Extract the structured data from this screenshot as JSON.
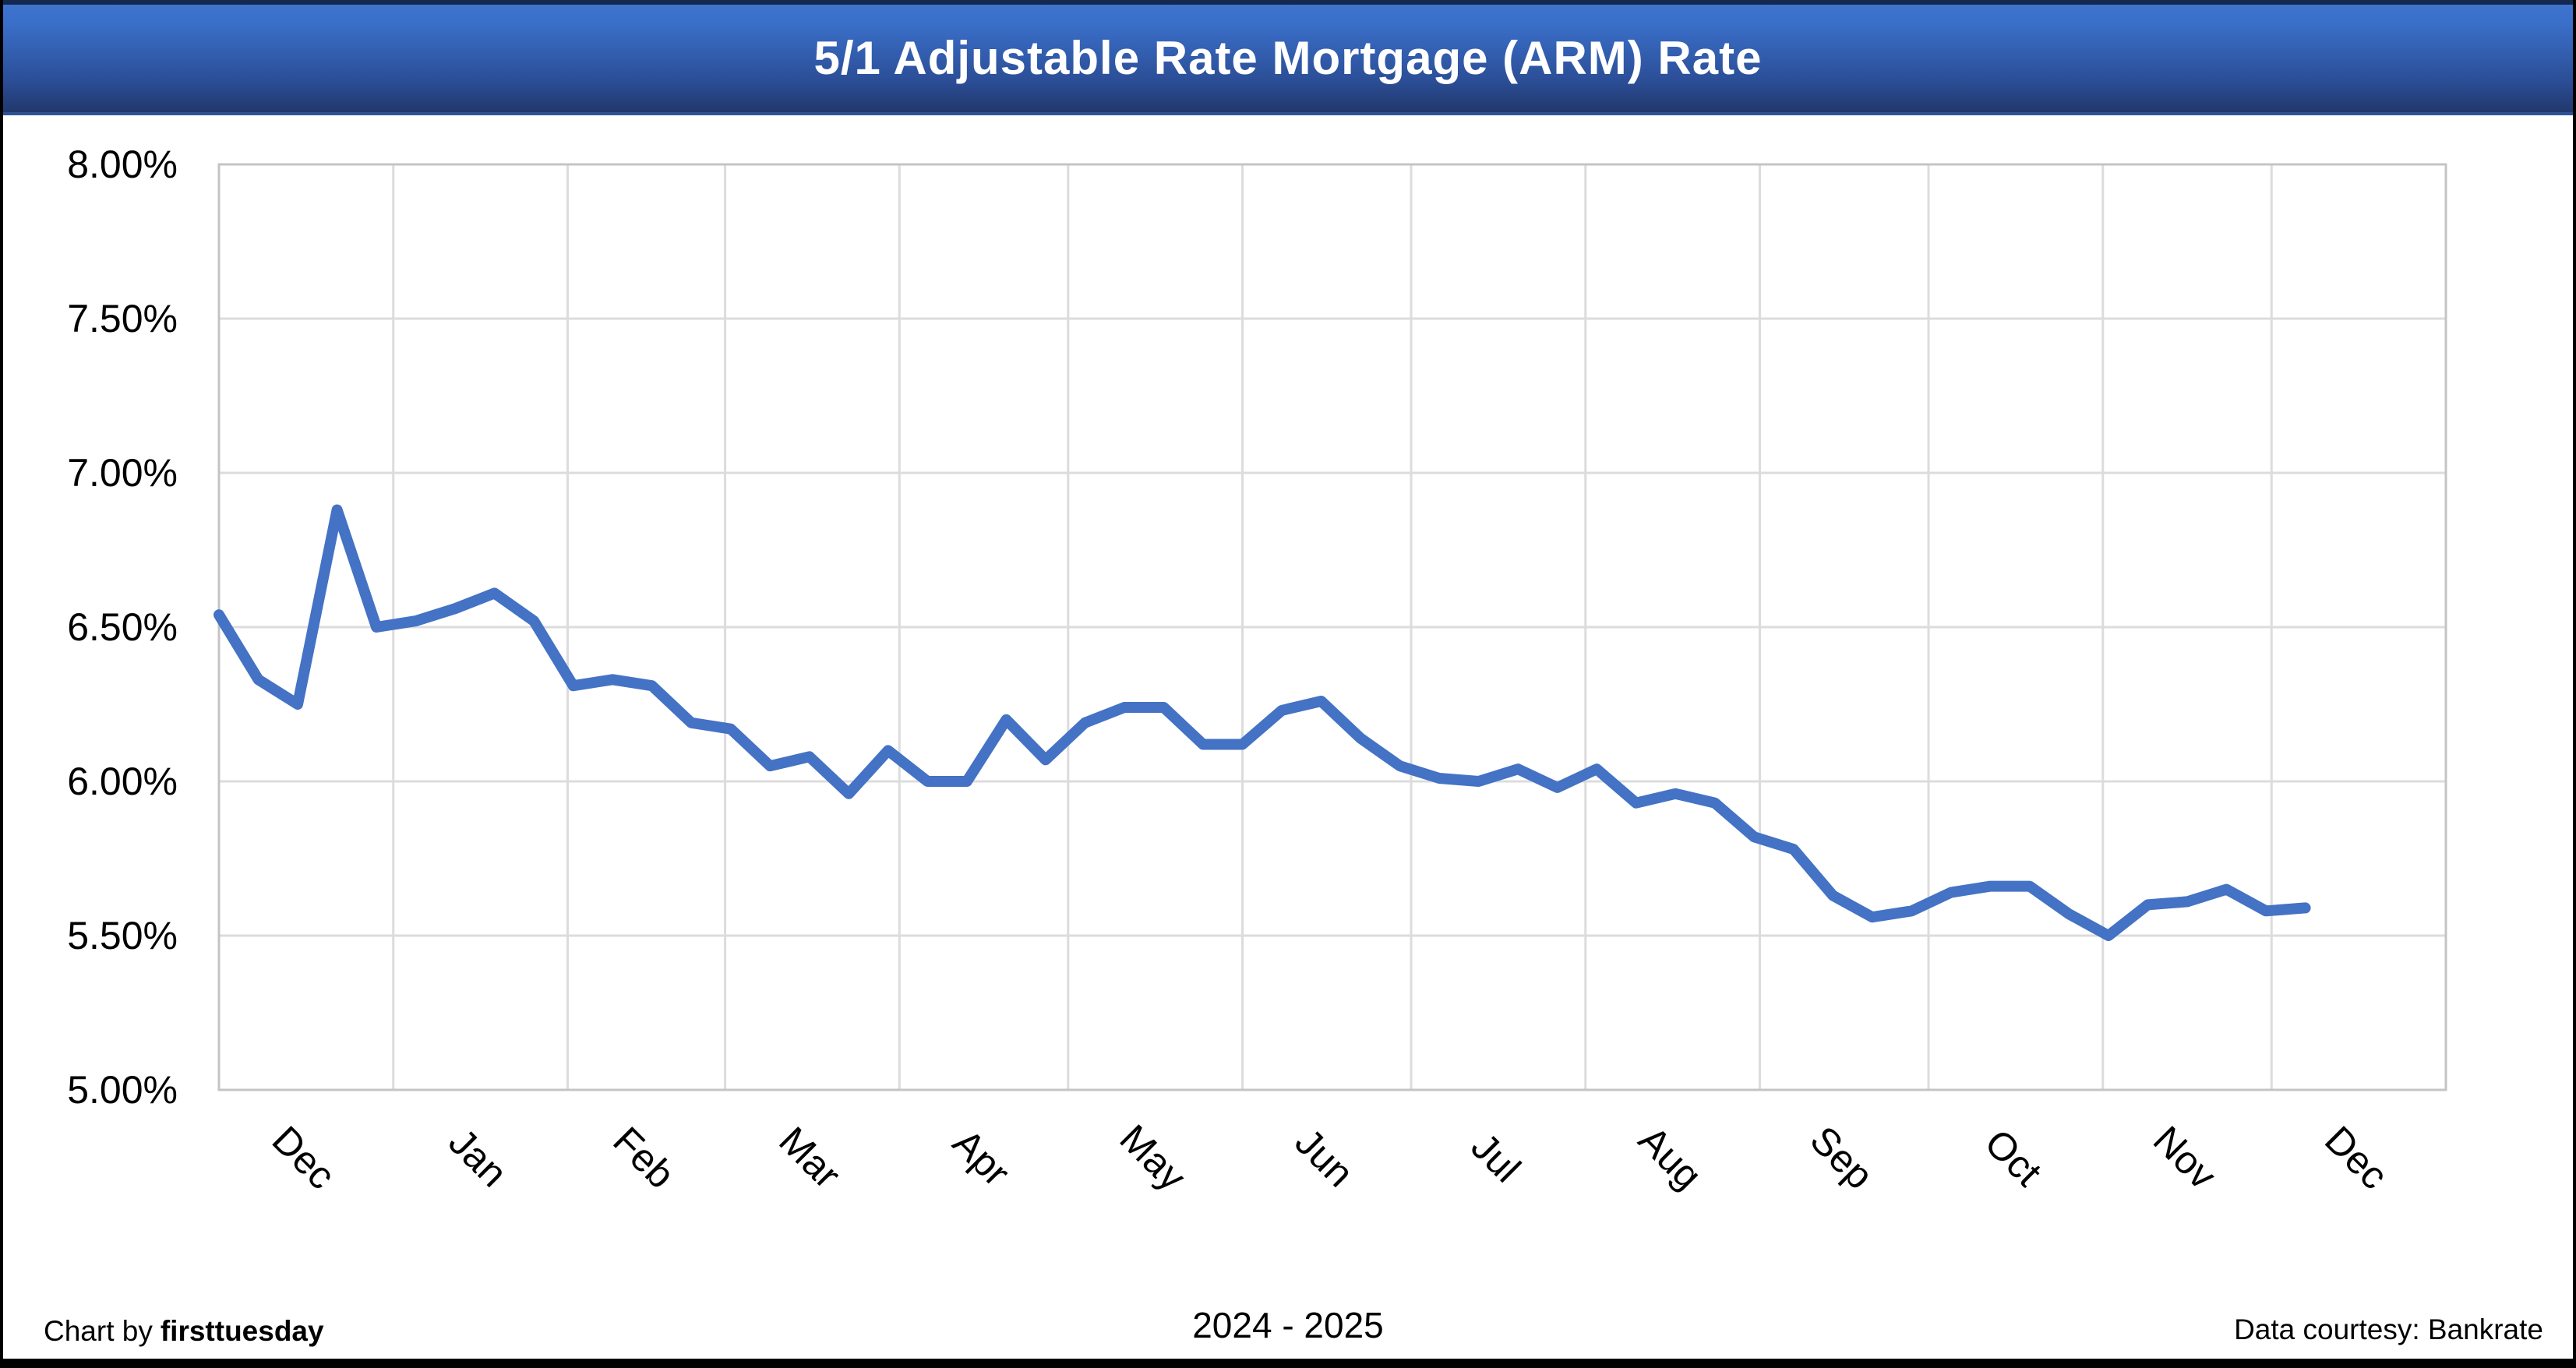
{
  "banner": {
    "title": "5/1 Adjustable Rate Mortgage (ARM) Rate"
  },
  "footer": {
    "credit_prefix": "Chart by",
    "credit_name": "firsttuesday",
    "period": "2024 - 2025",
    "source": "Data courtesy: Bankrate"
  },
  "chart_data": {
    "type": "line",
    "title": "5/1 Adjustable Rate Mortgage (ARM) Rate",
    "x_axis": {
      "months": [
        "Dec",
        "Jan",
        "Feb",
        "Mar",
        "Apr",
        "May",
        "Jun",
        "Jul",
        "Aug",
        "Sep",
        "Oct",
        "Nov",
        "Dec"
      ],
      "period_label": "2024 - 2025",
      "month_boundary_days": [
        0,
        31,
        62,
        90,
        121,
        151,
        182,
        212,
        243,
        274,
        304,
        335,
        365,
        396
      ]
    },
    "y_axis": {
      "min": 5.0,
      "max": 8.0,
      "step": 0.5,
      "ticks": [
        "8.00%",
        "7.50%",
        "7.00%",
        "6.50%",
        "6.00%",
        "5.50%",
        "5.00%"
      ]
    },
    "grid": true,
    "legend": "none",
    "series": [
      {
        "name": "5/1 ARM rate",
        "color": "#4472C4",
        "cadence": "weekly",
        "start_month": "Dec 2024",
        "end_month": "Dec 2025",
        "values": [
          6.54,
          6.33,
          6.25,
          6.88,
          6.5,
          6.52,
          6.56,
          6.61,
          6.52,
          6.31,
          6.33,
          6.31,
          6.19,
          6.17,
          6.05,
          6.08,
          5.96,
          6.1,
          6.0,
          6.0,
          6.2,
          6.07,
          6.19,
          6.24,
          6.24,
          6.12,
          6.12,
          6.23,
          6.26,
          6.14,
          6.05,
          6.01,
          6.0,
          6.04,
          5.98,
          6.04,
          5.93,
          5.96,
          5.93,
          5.82,
          5.78,
          5.63,
          5.56,
          5.58,
          5.64,
          5.66,
          5.66,
          5.57,
          5.5,
          5.6,
          5.61,
          5.65,
          5.58,
          5.59
        ]
      }
    ]
  },
  "colors": {
    "line": "#4472C4",
    "gridline": "#DCDCDC",
    "plot_border": "#C4C4C4",
    "banner_gradient_top": "#3A6FC9",
    "banner_gradient_bottom": "#20376B",
    "banner_top_border": "#152950",
    "banner_bottom_border": "#2E5395",
    "title_text": "#FFFFFF",
    "text": "#000000",
    "page_border": "#000000"
  }
}
